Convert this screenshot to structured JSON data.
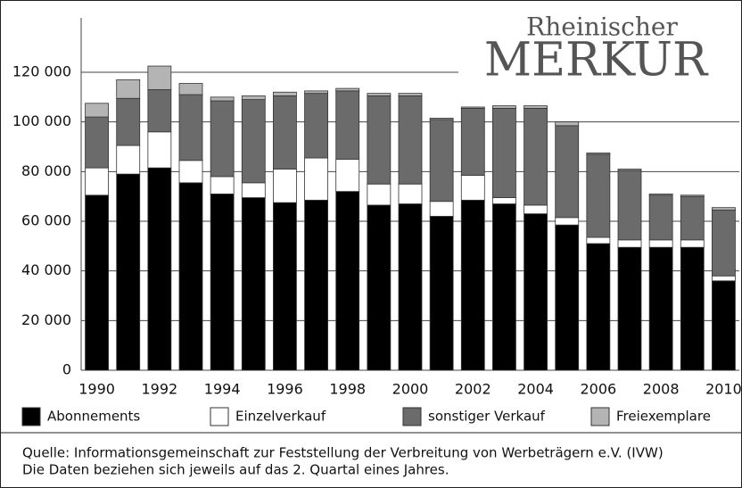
{
  "chart_data": {
    "type": "bar",
    "stacked": true,
    "logo": [
      "Rheinischer",
      "MERKUR"
    ],
    "categories": [
      "1990",
      null,
      "1992",
      null,
      "1994",
      null,
      "1996",
      null,
      "1998",
      null,
      "2000",
      null,
      "2002",
      null,
      "2004",
      null,
      "2006",
      null,
      "2008",
      null,
      "2010"
    ],
    "series": [
      {
        "name": "Abonnements",
        "color": "#000000",
        "values": [
          70500,
          79000,
          81500,
          75500,
          71000,
          69500,
          67500,
          68500,
          72000,
          66500,
          67000,
          62000,
          68500,
          67000,
          63000,
          58500,
          51000,
          49500,
          49500,
          49500,
          36000
        ]
      },
      {
        "name": "Einzelverkauf",
        "color": "#ffffff",
        "values": [
          11000,
          11500,
          14500,
          9000,
          7000,
          6000,
          13500,
          17000,
          13000,
          8500,
          8000,
          6000,
          10000,
          2500,
          3500,
          3000,
          2500,
          3000,
          3000,
          3000,
          2000
        ]
      },
      {
        "name": "sonstiger Verkauf",
        "color": "#6b6b6b",
        "values": [
          20500,
          19000,
          17000,
          26500,
          30500,
          33500,
          29500,
          26000,
          27500,
          35500,
          35500,
          33000,
          27000,
          36000,
          39000,
          37000,
          33500,
          28000,
          18000,
          17500,
          26500
        ]
      },
      {
        "name": "Freiexemplare",
        "color": "#b4b4b4",
        "values": [
          5500,
          7500,
          9500,
          4500,
          1500,
          1500,
          1500,
          1000,
          1000,
          1000,
          1000,
          500,
          500,
          1000,
          1000,
          1500,
          500,
          500,
          500,
          500,
          1000
        ]
      }
    ],
    "ylim": [
      0,
      120000
    ],
    "yticks": [
      0,
      {
        "value": 20000,
        "label": "20 000"
      },
      {
        "value": 40000,
        "label": "40 000"
      },
      {
        "value": 60000,
        "label": "60 000"
      },
      {
        "value": 80000,
        "label": "80 000"
      },
      {
        "value": 100000,
        "label": "100 000"
      },
      {
        "value": 120000,
        "label": "120 000"
      }
    ],
    "grid": true,
    "legend": "bottom",
    "source": [
      "Quelle: Informationsgemeinschaft zur Feststellung der Verbreitung von Werbeträgern e.V. (IVW)",
      "Die Daten beziehen sich jeweils auf das 2. Quartal eines Jahres."
    ]
  }
}
